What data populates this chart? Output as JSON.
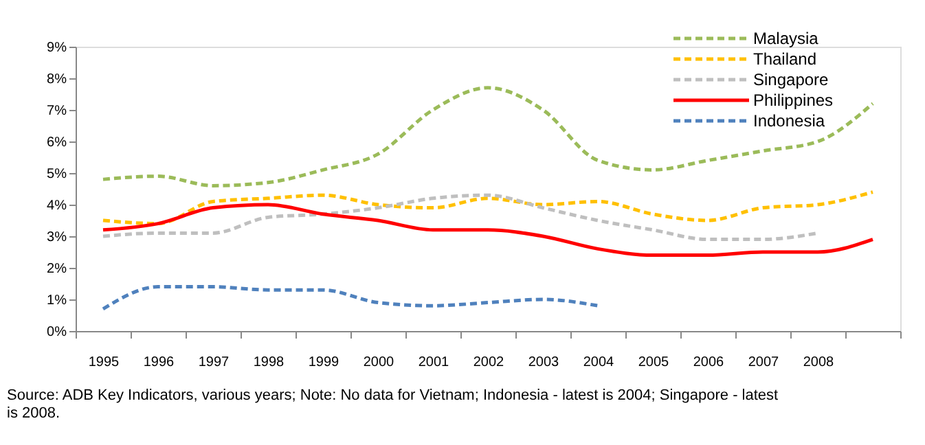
{
  "chart_data": {
    "type": "line",
    "categories": [
      "1995",
      "1996",
      "1997",
      "1998",
      "1999",
      "2000",
      "2001",
      "2002",
      "2003",
      "2004",
      "2005",
      "2006",
      "2007",
      "2008",
      null
    ],
    "series": [
      {
        "name": "Malaysia",
        "color": "#9bbb59",
        "line_style": "dashed",
        "values": [
          4.8,
          4.9,
          4.6,
          4.7,
          5.1,
          5.6,
          7.0,
          7.7,
          7.0,
          5.4,
          5.1,
          5.4,
          5.7,
          6.0,
          7.2
        ]
      },
      {
        "name": "Thailand",
        "color": "#ffc000",
        "line_style": "dashed",
        "values": [
          3.5,
          3.4,
          4.1,
          4.2,
          4.3,
          4.0,
          3.9,
          4.2,
          4.0,
          4.1,
          3.7,
          3.5,
          3.9,
          4.0,
          4.4
        ]
      },
      {
        "name": "Singapore",
        "color": "#bfbfbf",
        "line_style": "dashed",
        "values": [
          3.0,
          3.1,
          3.1,
          3.6,
          3.7,
          3.9,
          4.2,
          4.3,
          3.9,
          3.5,
          3.2,
          2.9,
          2.9,
          3.1,
          null
        ]
      },
      {
        "name": "Philippines",
        "color": "#ff0000",
        "line_style": "solid",
        "values": [
          3.2,
          3.4,
          3.9,
          4.0,
          3.7,
          3.5,
          3.2,
          3.2,
          3.0,
          2.6,
          2.4,
          2.4,
          2.5,
          2.5,
          2.9
        ]
      },
      {
        "name": "Indonesia",
        "color": "#4f81bd",
        "line_style": "dashed",
        "values": [
          0.7,
          1.4,
          1.4,
          1.3,
          1.3,
          0.9,
          0.8,
          0.9,
          1.0,
          0.8,
          null,
          null,
          null,
          null,
          null
        ]
      }
    ],
    "ylim": [
      0,
      9
    ],
    "yticks": [
      {
        "value": 0,
        "label": "0%"
      },
      {
        "value": 1,
        "label": "1%"
      },
      {
        "value": 2,
        "label": "2%"
      },
      {
        "value": 3,
        "label": "3%"
      },
      {
        "value": 4,
        "label": "4%"
      },
      {
        "value": 5,
        "label": "5%"
      },
      {
        "value": 6,
        "label": "6%"
      },
      {
        "value": 7,
        "label": "7%"
      },
      {
        "value": 8,
        "label": "8%"
      },
      {
        "value": 9,
        "label": "9%"
      }
    ],
    "grid": false,
    "legend": "top right",
    "annotations": [
      "Source: ADB Key Indicators, various years; Note: No data for Vietnam;  Indonesia - latest is 2004; Singapore - latest is 2008."
    ]
  }
}
